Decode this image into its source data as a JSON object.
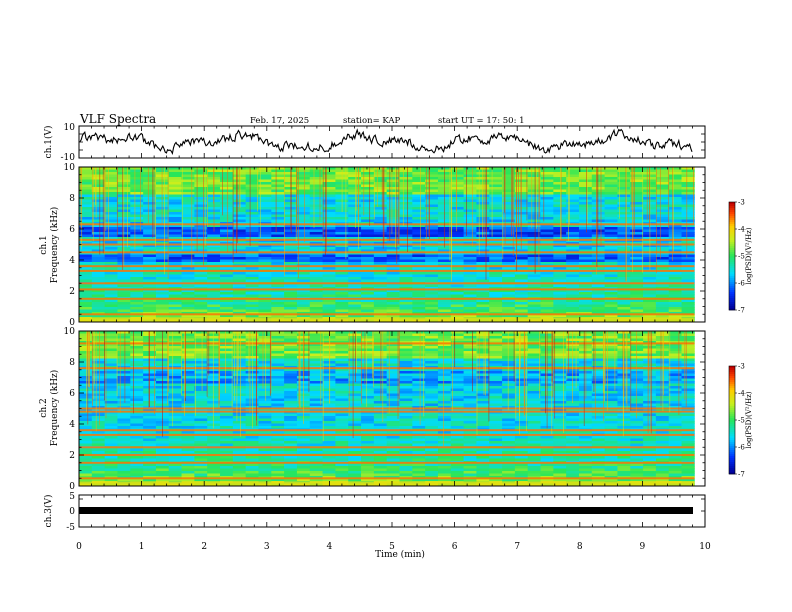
{
  "header": {
    "title": "VLF Spectra",
    "date": "Feb. 17, 2025",
    "station": "station= KAP",
    "start": "start  UT  =   17: 50: 1"
  },
  "chart_data": [
    {
      "id": "ch1_waveform",
      "type": "line",
      "ylabel": "ch.1(V)",
      "ylim": [
        -10,
        10
      ],
      "yticks": [
        "10",
        "-10"
      ],
      "xlim": [
        0,
        10
      ],
      "signal_range": [
        -8,
        8
      ]
    },
    {
      "id": "ch1_spectrogram",
      "type": "heatmap",
      "ylabel": "ch.1",
      "ylabel2": "Frequency (kHz)",
      "ylim": [
        0,
        10
      ],
      "yticks": [
        "0",
        "2",
        "4",
        "6",
        "8",
        "10"
      ],
      "xlim": [
        0,
        9.83
      ],
      "bands_khz": [
        0.5,
        1.5,
        2.1,
        2.5,
        3.3,
        3.6,
        4.5,
        5.0,
        5.3,
        6.3
      ],
      "colorbar": {
        "label": "log(PSD)(V²/Hz)",
        "range": [
          -7,
          -3
        ],
        "ticks": [
          "-3",
          "-4",
          "-5",
          "-6",
          "-7"
        ]
      }
    },
    {
      "id": "ch2_spectrogram",
      "type": "heatmap",
      "ylabel": "ch.2",
      "ylabel2": "Frequency (kHz)",
      "ylim": [
        0,
        10
      ],
      "yticks": [
        "0",
        "2",
        "4",
        "6",
        "8",
        "10"
      ],
      "xlim": [
        0,
        9.83
      ],
      "bands_khz": [
        0.5,
        1.5,
        2.0,
        2.5,
        3.3,
        3.6,
        4.8,
        5.0,
        7.6,
        9.2
      ],
      "colorbar": {
        "label": "log(PSD)(V²/Hz)",
        "range": [
          -7,
          -3
        ],
        "ticks": [
          "-3",
          "-4",
          "-5",
          "-6",
          "-7"
        ]
      }
    },
    {
      "id": "ch3_waveform",
      "type": "line",
      "ylabel": "ch.3(V)",
      "ylim": [
        -5,
        5
      ],
      "yticks": [
        "5",
        "0",
        "-5"
      ],
      "xlim": [
        0,
        10
      ],
      "xlabel": "Time  (min)",
      "xticks": [
        "0",
        "1",
        "2",
        "3",
        "4",
        "5",
        "6",
        "7",
        "8",
        "9",
        "10"
      ],
      "signal_range": [
        -0.6,
        -0.3
      ]
    }
  ],
  "colors": {
    "axis": "#000000",
    "background": "#ffffff"
  }
}
